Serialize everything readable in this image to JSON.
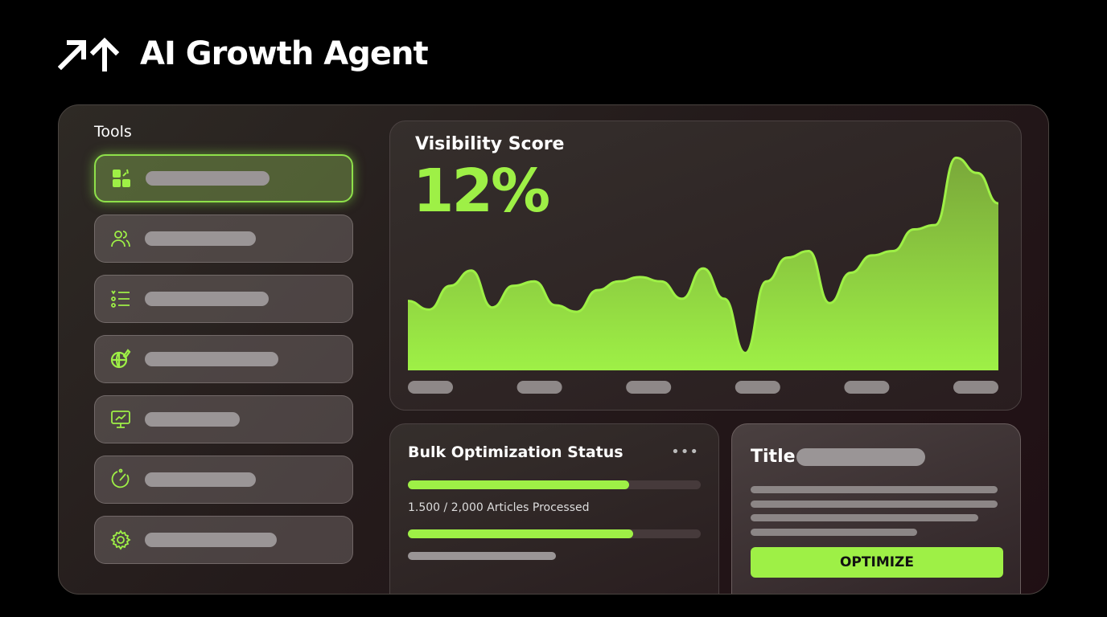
{
  "app": {
    "title": "AI Growth Agent",
    "logo_icon": "growth-arrows-icon"
  },
  "sidebar": {
    "title": "Tools",
    "items": [
      {
        "icon": "dashboard-grid-icon",
        "active": true
      },
      {
        "icon": "users-icon",
        "active": false
      },
      {
        "icon": "list-icon",
        "active": false
      },
      {
        "icon": "globe-edit-icon",
        "active": false
      },
      {
        "icon": "monitor-chart-icon",
        "active": false
      },
      {
        "icon": "gauge-icon",
        "active": false
      },
      {
        "icon": "gear-icon",
        "active": false
      }
    ]
  },
  "visibility": {
    "title": "Visibility Score",
    "value": "12%"
  },
  "chart_data": {
    "type": "area",
    "title": "Visibility Score",
    "color": "#9ef046",
    "x_tick_count": 6,
    "values": [
      32,
      28,
      39,
      46,
      29,
      39,
      41,
      30,
      27,
      37,
      41,
      43,
      41,
      33,
      47,
      33,
      8,
      41,
      52,
      55,
      31,
      45,
      53,
      55,
      65,
      67,
      98,
      91,
      77
    ]
  },
  "bulk": {
    "title": "Bulk Optimization Status",
    "progress_1": 0.755,
    "progress_2": 0.77,
    "label": "1.500 / 2,000 Articles Processed"
  },
  "title_card": {
    "title": "Title",
    "button": "OPTIMIZE"
  },
  "colors": {
    "accent": "#9ef046",
    "background": "#000000"
  }
}
